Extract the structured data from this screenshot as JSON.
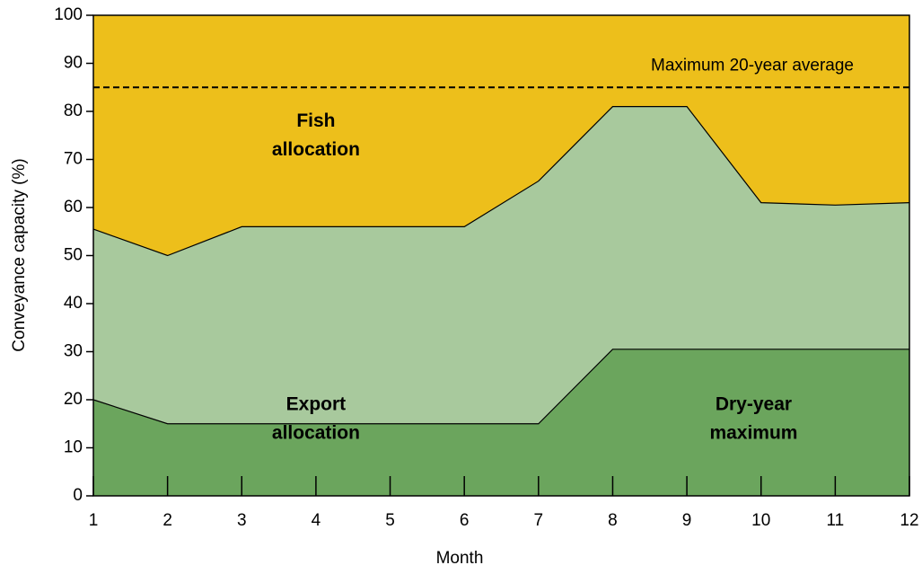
{
  "chart_data": {
    "type": "stacked_area",
    "x_label": "Month",
    "y_label": "Conveyance capacity (%)",
    "x": [
      1,
      2,
      3,
      4,
      5,
      6,
      7,
      8,
      9,
      10,
      11,
      12
    ],
    "series": [
      {
        "name": "Dry-year maximum",
        "color": "#6ba55d",
        "values": [
          20,
          15,
          15,
          15,
          15,
          15,
          15,
          30.5,
          30.5,
          30.5,
          30.5,
          30.5
        ]
      },
      {
        "name": "Export allocation",
        "color": "#a8c99d",
        "values": [
          35.5,
          35,
          41,
          41,
          41,
          41,
          50.5,
          50.5,
          50.5,
          30.5,
          30,
          30.5
        ]
      },
      {
        "name": "Fish allocation",
        "color": "#edbf1b",
        "values": [
          44.5,
          50,
          44,
          44,
          44,
          44,
          34.5,
          19,
          19,
          39,
          39.5,
          39
        ]
      }
    ],
    "reference_line": {
      "value": 85,
      "label": "Maximum 20-year average"
    },
    "xlim": [
      1,
      12
    ],
    "xticks": [
      1,
      2,
      3,
      4,
      5,
      6,
      7,
      8,
      9,
      10,
      11,
      12
    ],
    "ylim": [
      0,
      100
    ],
    "yticks": [
      0,
      10,
      20,
      30,
      40,
      50,
      60,
      70,
      80,
      90,
      100
    ]
  }
}
